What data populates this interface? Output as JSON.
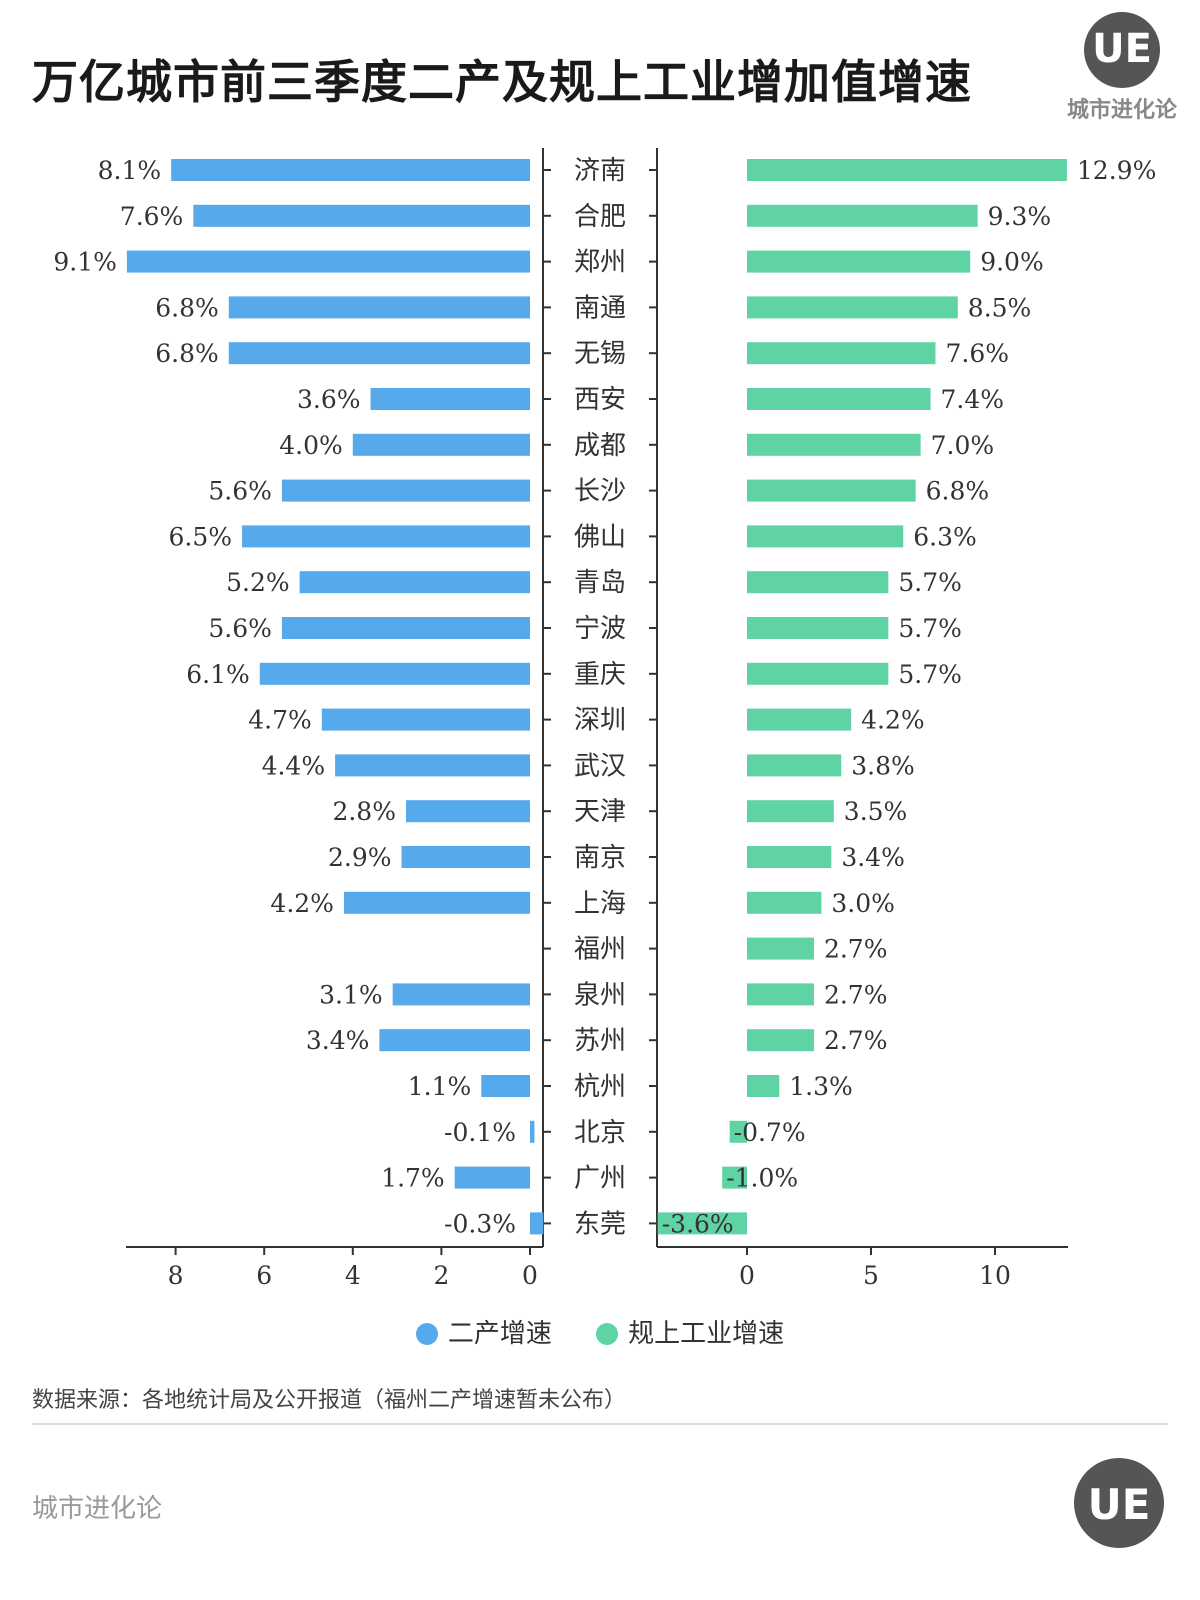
{
  "title": "万亿城市前三季度二产及规上工业增加值增速",
  "logo": {
    "initials": "UE",
    "brand": "城市进化论"
  },
  "chart_data": {
    "type": "bar",
    "orientation": "horizontal",
    "categories": [
      "济南",
      "合肥",
      "郑州",
      "南通",
      "无锡",
      "西安",
      "成都",
      "长沙",
      "佛山",
      "青岛",
      "宁波",
      "重庆",
      "深圳",
      "武汉",
      "天津",
      "南京",
      "上海",
      "福州",
      "泉州",
      "苏州",
      "杭州",
      "北京",
      "广州",
      "东莞"
    ],
    "series": [
      {
        "name": "二产增速",
        "color": "#56a9eb",
        "values": [
          8.1,
          7.6,
          9.1,
          6.8,
          6.8,
          3.6,
          4.0,
          5.6,
          6.5,
          5.2,
          5.6,
          6.1,
          4.7,
          4.4,
          2.8,
          2.9,
          4.2,
          null,
          3.1,
          3.4,
          1.1,
          -0.1,
          1.7,
          -0.3
        ],
        "labels": [
          "8.1%",
          "7.6%",
          "9.1%",
          "6.8%",
          "6.8%",
          "3.6%",
          "4.0%",
          "5.6%",
          "6.5%",
          "5.2%",
          "5.6%",
          "6.1%",
          "4.7%",
          "4.4%",
          "2.8%",
          "2.9%",
          "4.2%",
          "",
          "3.1%",
          "3.4%",
          "1.1%",
          "-0.1%",
          "1.7%",
          "-0.3%"
        ],
        "axis": {
          "ticks": [
            "8",
            "6",
            "4",
            "2",
            "0"
          ],
          "range": [
            0,
            9.5
          ],
          "direction": "reversed"
        }
      },
      {
        "name": "规上工业增速",
        "color": "#5fd3a3",
        "values": [
          12.9,
          9.3,
          9.0,
          8.5,
          7.6,
          7.4,
          7.0,
          6.8,
          6.3,
          5.7,
          5.7,
          5.7,
          4.2,
          3.8,
          3.5,
          3.4,
          3.0,
          2.7,
          2.7,
          2.7,
          1.3,
          -0.7,
          -1.0,
          -3.6
        ],
        "labels": [
          "12.9%",
          "9.3%",
          "9.0%",
          "8.5%",
          "7.6%",
          "7.4%",
          "7.0%",
          "6.8%",
          "6.3%",
          "5.7%",
          "5.7%",
          "5.7%",
          "4.2%",
          "3.8%",
          "3.5%",
          "3.4%",
          "3.0%",
          "2.7%",
          "2.7%",
          "2.7%",
          "1.3%",
          "-0.7%",
          "-1.0%",
          "-3.6%"
        ],
        "axis": {
          "ticks": [
            "0",
            "5",
            "10"
          ],
          "range": [
            -3.6,
            12.9
          ]
        }
      }
    ],
    "legend_placement": "bottom",
    "grid": false
  },
  "source_note": "数据来源：各地统计局及公开报道（福州二产增速暂未公布）",
  "footer": {
    "brand": "城市进化论",
    "logo_initials": "UE"
  }
}
